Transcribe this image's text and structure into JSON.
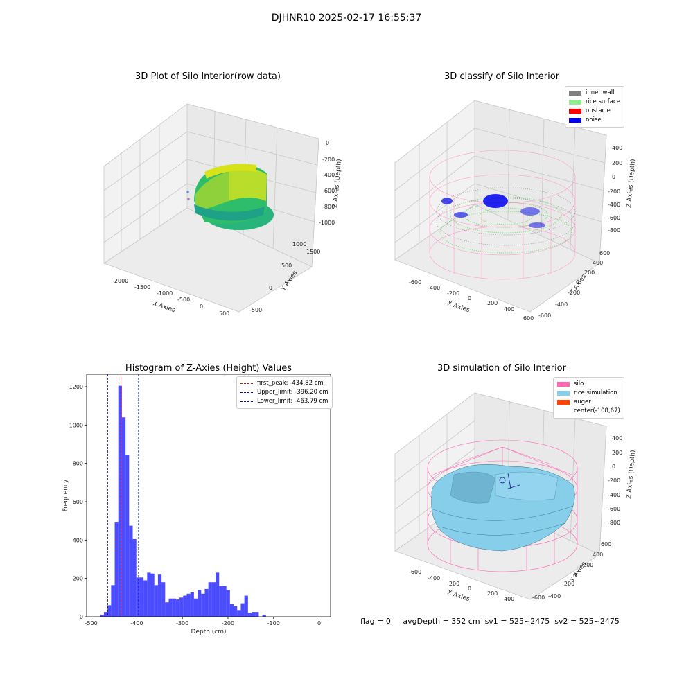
{
  "suptitle": "DJHNR10 2025-02-17 16:55:37",
  "panels": {
    "raw": {
      "title": "3D Plot of Silo Interior(row data)",
      "xlabel": "X Axies",
      "ylabel": "Y Axies",
      "zlabel": "Z Axies (Depth)",
      "xticks": [
        "-2000",
        "-1500",
        "-1000",
        "-500",
        "0",
        "500"
      ],
      "yticks": [
        "-500",
        "0",
        "500",
        "1000",
        "1500"
      ],
      "zticks": [
        "0",
        "-200",
        "-400",
        "-600",
        "-800",
        "-1000"
      ]
    },
    "classify": {
      "title": "3D classify of Silo Interior",
      "xlabel": "X Axies",
      "ylabel": "Y Axies",
      "zlabel": "Z Axies (Depth)",
      "xticks": [
        "-600",
        "-400",
        "-200",
        "0",
        "200",
        "400",
        "600"
      ],
      "yticks": [
        "-600",
        "-400",
        "-200",
        "0",
        "200",
        "400",
        "600"
      ],
      "zticks": [
        "400",
        "200",
        "0",
        "-200",
        "-400",
        "-600",
        "-800"
      ],
      "legend": [
        {
          "label": "inner wall",
          "color": "#808080"
        },
        {
          "label": "rice surface",
          "color": "#90ee90"
        },
        {
          "label": "obstacle",
          "color": "#ff0000"
        },
        {
          "label": "noise",
          "color": "#0000ff"
        }
      ]
    },
    "simulation": {
      "title": "3D simulation of Silo Interior",
      "xlabel": "X Axies",
      "ylabel": "Y Axies",
      "zlabel": "Z Axies (Depth)",
      "xticks": [
        "-600",
        "-400",
        "-200",
        "0",
        "200",
        "400"
      ],
      "yticks": [
        "-600",
        "-400",
        "-200",
        "0",
        "200",
        "400",
        "600"
      ],
      "zticks": [
        "400",
        "200",
        "0",
        "-200",
        "-400",
        "-600",
        "-800"
      ],
      "legend": [
        {
          "label": "silo",
          "color": "#ff69b4"
        },
        {
          "label": "rice simulation",
          "color": "#87ceeb"
        },
        {
          "label": "auger",
          "color": "#ff4500"
        },
        {
          "label": "center(-108,67)",
          "color": ""
        }
      ]
    }
  },
  "chart_data": {
    "type": "bar",
    "title": "Histogram of Z-Axies (Height) Values",
    "xlabel": "Depth (cm)",
    "ylabel": "Frequency",
    "xlim": [
      -510,
      25
    ],
    "ylim": [
      0,
      1265
    ],
    "xticks": [
      -500,
      -400,
      -300,
      -200,
      -100,
      0
    ],
    "yticks": [
      0,
      200,
      400,
      600,
      800,
      1000,
      1200
    ],
    "bar_color": "#0000ff",
    "bins": {
      "start": -480,
      "width": 7.9,
      "values": [
        10,
        25,
        60,
        165,
        495,
        1205,
        1040,
        845,
        475,
        405,
        205,
        205,
        190,
        230,
        225,
        165,
        220,
        180,
        75,
        95,
        95,
        90,
        100,
        110,
        120,
        130,
        95,
        140,
        120,
        145,
        180,
        180,
        230,
        160,
        160,
        140,
        65,
        55,
        35,
        70,
        110,
        20,
        25,
        25,
        0,
        10
      ]
    },
    "lines": [
      {
        "label": "first_peak: -434.82 cm",
        "x": -434.82,
        "color": "#ff0000"
      },
      {
        "label": "Upper_limit: -396.20 cm",
        "x": -396.2,
        "color": "#0000ff"
      },
      {
        "label": "Lower_limit: -463.79 cm",
        "x": -463.79,
        "color": "#0000ff"
      }
    ]
  },
  "footer": {
    "flag": "flag = 0",
    "avg": "avgDepth = 352 cm",
    "sv1": "sv1 = 525~2475",
    "sv2": "sv2 = 525~2475"
  }
}
